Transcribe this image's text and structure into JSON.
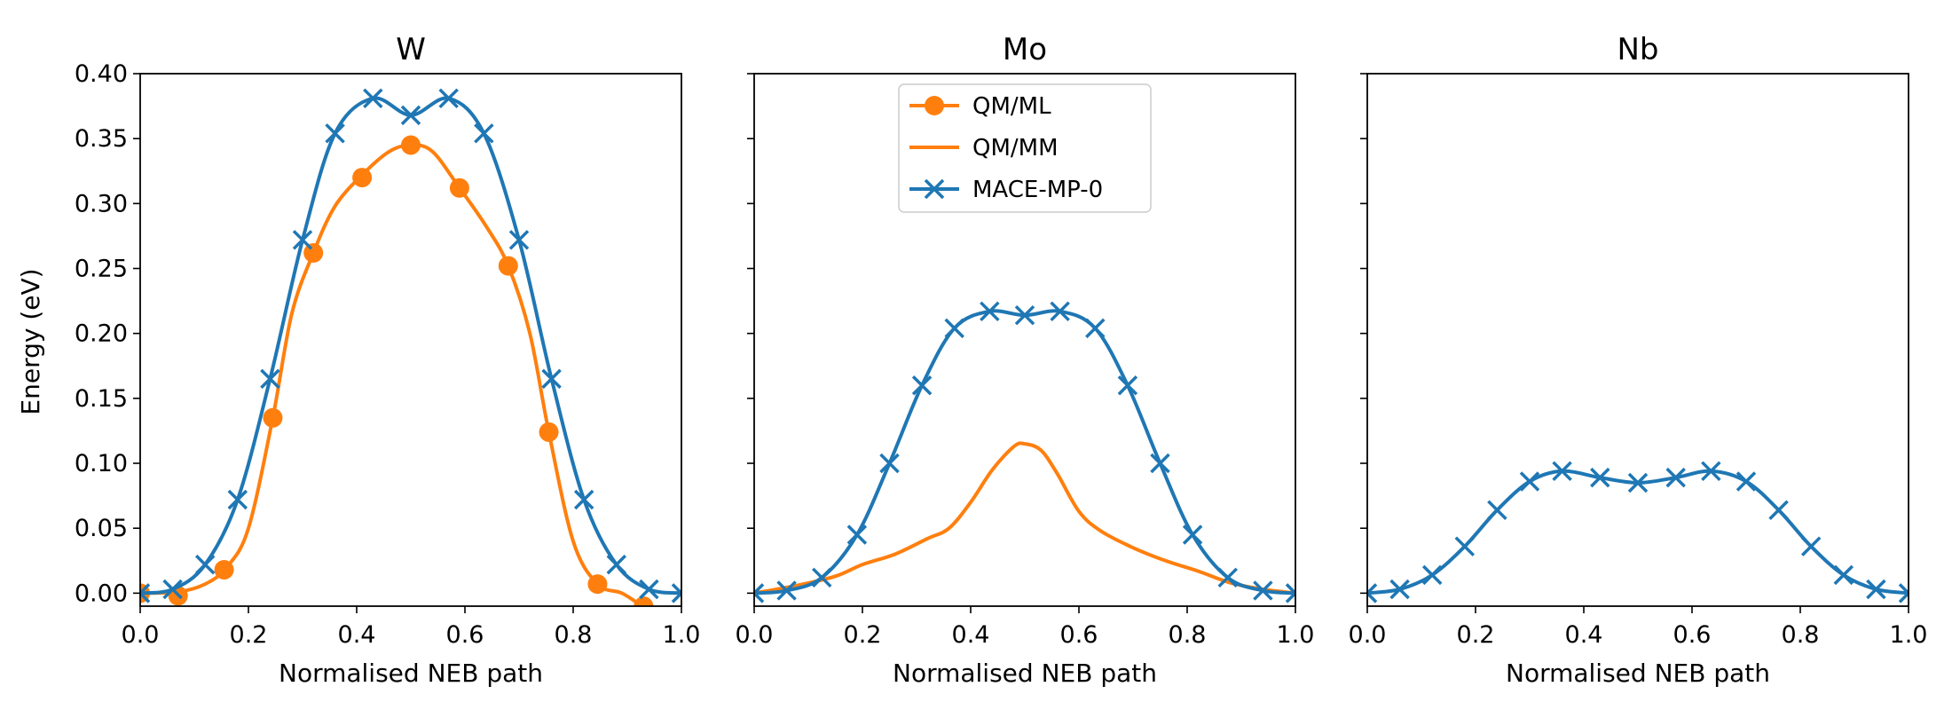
{
  "colors": {
    "orange": "#ff7f0e",
    "blue": "#1f77b4",
    "frame": "#000000",
    "background": "#ffffff"
  },
  "figure": {
    "ylabel": "Energy (eV)"
  },
  "legend": {
    "placement": "upper-center of middle panel",
    "entries": [
      {
        "label": "QM/ML",
        "color": "#ff7f0e",
        "style": "line with circle markers"
      },
      {
        "label": "QM/MM",
        "color": "#ff7f0e",
        "style": "line"
      },
      {
        "label": "MACE-MP-0",
        "color": "#1f77b4",
        "style": "line with x markers"
      }
    ]
  },
  "chart_data": [
    {
      "type": "line",
      "title": "W",
      "xlabel": "Normalised NEB path",
      "ylabel": "Energy (eV)",
      "xlim": [
        0,
        1
      ],
      "ylim": [
        -0.01,
        0.4
      ],
      "xticks": [
        "0.0",
        "0.2",
        "0.4",
        "0.6",
        "0.8",
        "1.0"
      ],
      "yticks": [
        "0.00",
        "0.05",
        "0.10",
        "0.15",
        "0.20",
        "0.25",
        "0.30",
        "0.35",
        "0.40"
      ],
      "grid": false,
      "series": [
        {
          "name": "QM/ML",
          "color": "#ff7f0e",
          "marker": "circle",
          "line": [
            [
              0,
              0
            ],
            [
              0.07,
              0.001
            ],
            [
              0.12,
              0.007
            ],
            [
              0.16,
              0.02
            ],
            [
              0.2,
              0.05
            ],
            [
              0.245,
              0.135
            ],
            [
              0.28,
              0.215
            ],
            [
              0.32,
              0.262
            ],
            [
              0.36,
              0.298
            ],
            [
              0.41,
              0.322
            ],
            [
              0.46,
              0.34
            ],
            [
              0.5,
              0.345
            ],
            [
              0.54,
              0.34
            ],
            [
              0.59,
              0.312
            ],
            [
              0.64,
              0.282
            ],
            [
              0.68,
              0.252
            ],
            [
              0.72,
              0.2
            ],
            [
              0.755,
              0.124
            ],
            [
              0.8,
              0.04
            ],
            [
              0.845,
              0.007
            ],
            [
              0.89,
              0
            ],
            [
              0.93,
              -0.01
            ],
            [
              0.96,
              -0.012
            ],
            [
              1.0,
              -0.014
            ]
          ],
          "markers": [
            [
              0,
              0
            ],
            [
              0.07,
              -0.002
            ],
            [
              0.155,
              0.018
            ],
            [
              0.245,
              0.135
            ],
            [
              0.32,
              0.262
            ],
            [
              0.41,
              0.32
            ],
            [
              0.5,
              0.345
            ],
            [
              0.59,
              0.312
            ],
            [
              0.68,
              0.252
            ],
            [
              0.755,
              0.124
            ],
            [
              0.845,
              0.007
            ],
            [
              0.93,
              -0.01
            ]
          ]
        },
        {
          "name": "MACE-MP-0",
          "color": "#1f77b4",
          "marker": "x",
          "line": [
            [
              0,
              0
            ],
            [
              0.06,
              0.003
            ],
            [
              0.12,
              0.022
            ],
            [
              0.18,
              0.072
            ],
            [
              0.24,
              0.165
            ],
            [
              0.3,
              0.272
            ],
            [
              0.36,
              0.354
            ],
            [
              0.43,
              0.381
            ],
            [
              0.5,
              0.368
            ],
            [
              0.57,
              0.381
            ],
            [
              0.635,
              0.354
            ],
            [
              0.7,
              0.272
            ],
            [
              0.76,
              0.165
            ],
            [
              0.82,
              0.072
            ],
            [
              0.88,
              0.022
            ],
            [
              0.94,
              0.003
            ],
            [
              1.0,
              0
            ]
          ],
          "markers": [
            [
              0,
              0
            ],
            [
              0.06,
              0.003
            ],
            [
              0.12,
              0.022
            ],
            [
              0.18,
              0.072
            ],
            [
              0.24,
              0.165
            ],
            [
              0.3,
              0.272
            ],
            [
              0.36,
              0.354
            ],
            [
              0.43,
              0.381
            ],
            [
              0.5,
              0.368
            ],
            [
              0.57,
              0.381
            ],
            [
              0.635,
              0.354
            ],
            [
              0.7,
              0.272
            ],
            [
              0.76,
              0.165
            ],
            [
              0.82,
              0.072
            ],
            [
              0.88,
              0.022
            ],
            [
              0.94,
              0.003
            ],
            [
              1.0,
              0
            ]
          ]
        }
      ]
    },
    {
      "type": "line",
      "title": "Mo",
      "xlabel": "Normalised NEB path",
      "xlim": [
        0,
        1
      ],
      "ylim": [
        -0.01,
        0.4
      ],
      "xticks": [
        "0.0",
        "0.2",
        "0.4",
        "0.6",
        "0.8",
        "1.0"
      ],
      "grid": false,
      "series": [
        {
          "name": "QM/MM",
          "color": "#ff7f0e",
          "marker": "none",
          "line": [
            [
              0,
              0
            ],
            [
              0.08,
              0.006
            ],
            [
              0.15,
              0.013
            ],
            [
              0.2,
              0.022
            ],
            [
              0.26,
              0.03
            ],
            [
              0.32,
              0.042
            ],
            [
              0.36,
              0.05
            ],
            [
              0.4,
              0.07
            ],
            [
              0.44,
              0.095
            ],
            [
              0.48,
              0.113
            ],
            [
              0.5,
              0.115
            ],
            [
              0.53,
              0.11
            ],
            [
              0.56,
              0.092
            ],
            [
              0.6,
              0.063
            ],
            [
              0.64,
              0.048
            ],
            [
              0.7,
              0.035
            ],
            [
              0.76,
              0.025
            ],
            [
              0.82,
              0.017
            ],
            [
              0.88,
              0.008
            ],
            [
              0.94,
              0.003
            ],
            [
              1.0,
              0
            ]
          ],
          "markers": []
        },
        {
          "name": "MACE-MP-0",
          "color": "#1f77b4",
          "marker": "x",
          "line": [
            [
              0,
              0
            ],
            [
              0.06,
              0.002
            ],
            [
              0.125,
              0.012
            ],
            [
              0.19,
              0.045
            ],
            [
              0.25,
              0.1
            ],
            [
              0.31,
              0.16
            ],
            [
              0.37,
              0.204
            ],
            [
              0.435,
              0.217
            ],
            [
              0.5,
              0.214
            ],
            [
              0.565,
              0.217
            ],
            [
              0.63,
              0.204
            ],
            [
              0.69,
              0.16
            ],
            [
              0.75,
              0.1
            ],
            [
              0.81,
              0.045
            ],
            [
              0.875,
              0.012
            ],
            [
              0.94,
              0.002
            ],
            [
              1.0,
              0
            ]
          ],
          "markers": [
            [
              0,
              0
            ],
            [
              0.06,
              0.002
            ],
            [
              0.125,
              0.012
            ],
            [
              0.19,
              0.045
            ],
            [
              0.25,
              0.1
            ],
            [
              0.31,
              0.16
            ],
            [
              0.37,
              0.204
            ],
            [
              0.435,
              0.217
            ],
            [
              0.5,
              0.214
            ],
            [
              0.565,
              0.217
            ],
            [
              0.63,
              0.204
            ],
            [
              0.69,
              0.16
            ],
            [
              0.75,
              0.1
            ],
            [
              0.81,
              0.045
            ],
            [
              0.875,
              0.012
            ],
            [
              0.94,
              0.002
            ],
            [
              1.0,
              0
            ]
          ]
        }
      ]
    },
    {
      "type": "line",
      "title": "Nb",
      "xlabel": "Normalised NEB path",
      "xlim": [
        0,
        1
      ],
      "ylim": [
        -0.01,
        0.4
      ],
      "xticks": [
        "0.0",
        "0.2",
        "0.4",
        "0.6",
        "0.8",
        "1.0"
      ],
      "grid": false,
      "series": [
        {
          "name": "MACE-MP-0",
          "color": "#1f77b4",
          "marker": "x",
          "line": [
            [
              0,
              0
            ],
            [
              0.06,
              0.003
            ],
            [
              0.12,
              0.014
            ],
            [
              0.18,
              0.036
            ],
            [
              0.24,
              0.064
            ],
            [
              0.3,
              0.086
            ],
            [
              0.36,
              0.094
            ],
            [
              0.43,
              0.089
            ],
            [
              0.5,
              0.085
            ],
            [
              0.57,
              0.089
            ],
            [
              0.635,
              0.094
            ],
            [
              0.7,
              0.086
            ],
            [
              0.76,
              0.064
            ],
            [
              0.82,
              0.036
            ],
            [
              0.88,
              0.014
            ],
            [
              0.94,
              0.003
            ],
            [
              1.0,
              0
            ]
          ],
          "markers": [
            [
              0,
              0
            ],
            [
              0.06,
              0.003
            ],
            [
              0.12,
              0.014
            ],
            [
              0.18,
              0.036
            ],
            [
              0.24,
              0.064
            ],
            [
              0.3,
              0.086
            ],
            [
              0.36,
              0.094
            ],
            [
              0.43,
              0.089
            ],
            [
              0.5,
              0.085
            ],
            [
              0.57,
              0.089
            ],
            [
              0.635,
              0.094
            ],
            [
              0.7,
              0.086
            ],
            [
              0.76,
              0.064
            ],
            [
              0.82,
              0.036
            ],
            [
              0.88,
              0.014
            ],
            [
              0.94,
              0.003
            ],
            [
              1.0,
              0
            ]
          ]
        }
      ]
    }
  ]
}
